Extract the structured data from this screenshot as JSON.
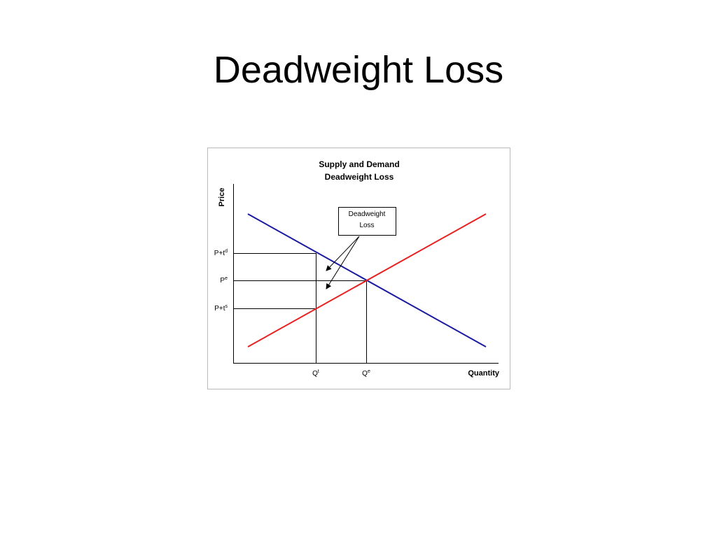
{
  "slide": {
    "title": "Deadweight Loss"
  },
  "diagram": {
    "title": [
      "Supply and Demand",
      "Deadweight Loss"
    ],
    "y_axis_label": "Price",
    "x_axis_label": "Quantity",
    "price_labels": [
      {
        "base": "P+t",
        "sup": "d"
      },
      {
        "base": "P",
        "sup": "e"
      },
      {
        "base": "P+t",
        "sup": "s"
      }
    ],
    "quantity_labels": [
      {
        "base": "Q",
        "sup": "t"
      },
      {
        "base": "Q",
        "sup": "e"
      }
    ],
    "callout": [
      "Deadweight",
      "Loss"
    ]
  }
}
